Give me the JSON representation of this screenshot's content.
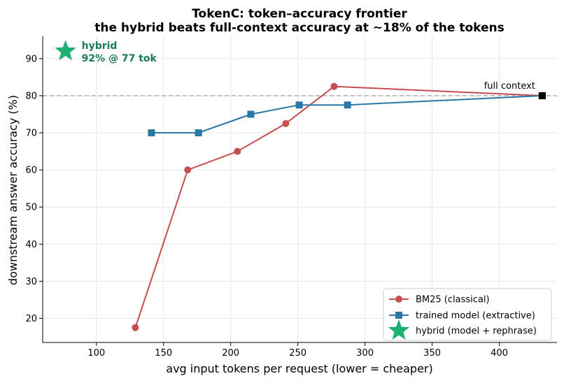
{
  "chart_data": {
    "type": "line",
    "title": "TokenC: token–accuracy frontier",
    "subtitle": "the hybrid beats full-context accuracy at ~18% of the tokens",
    "xlabel": "avg input tokens per request  (lower = cheaper)",
    "ylabel": "downstream answer accuracy (%)",
    "xlim": [
      60,
      443
    ],
    "ylim": [
      13.5,
      96
    ],
    "xticks": [
      100,
      150,
      200,
      250,
      300,
      350,
      400
    ],
    "yticks": [
      20,
      30,
      40,
      50,
      60,
      70,
      80,
      90
    ],
    "grid": true,
    "legend_position": "bottom-right",
    "series": [
      {
        "name": "BM25 (classical)",
        "color": "#c44e52",
        "marker": "circle",
        "x": [
          129,
          168,
          205,
          241,
          277,
          432
        ],
        "y": [
          17.5,
          60,
          65,
          72.5,
          82.5,
          80
        ]
      },
      {
        "name": "trained model (extractive)",
        "color": "#2a77a5",
        "marker": "square",
        "x": [
          141,
          176,
          215,
          251,
          287,
          432
        ],
        "y": [
          70,
          70,
          75,
          77.5,
          77.5,
          80
        ]
      },
      {
        "name": "hybrid (model + rephrase)",
        "color": "#1fae74",
        "marker": "star",
        "x": [
          77
        ],
        "y": [
          92
        ]
      }
    ],
    "reference_line": {
      "y": 80,
      "label": "full context",
      "color": "#b3b3b3"
    },
    "full_context_point": {
      "x": 432,
      "y": 80,
      "color": "#000000"
    },
    "annotation": {
      "line1": "hybrid",
      "line2": "92% @ 77 tok",
      "color": "#1a7a55"
    }
  }
}
